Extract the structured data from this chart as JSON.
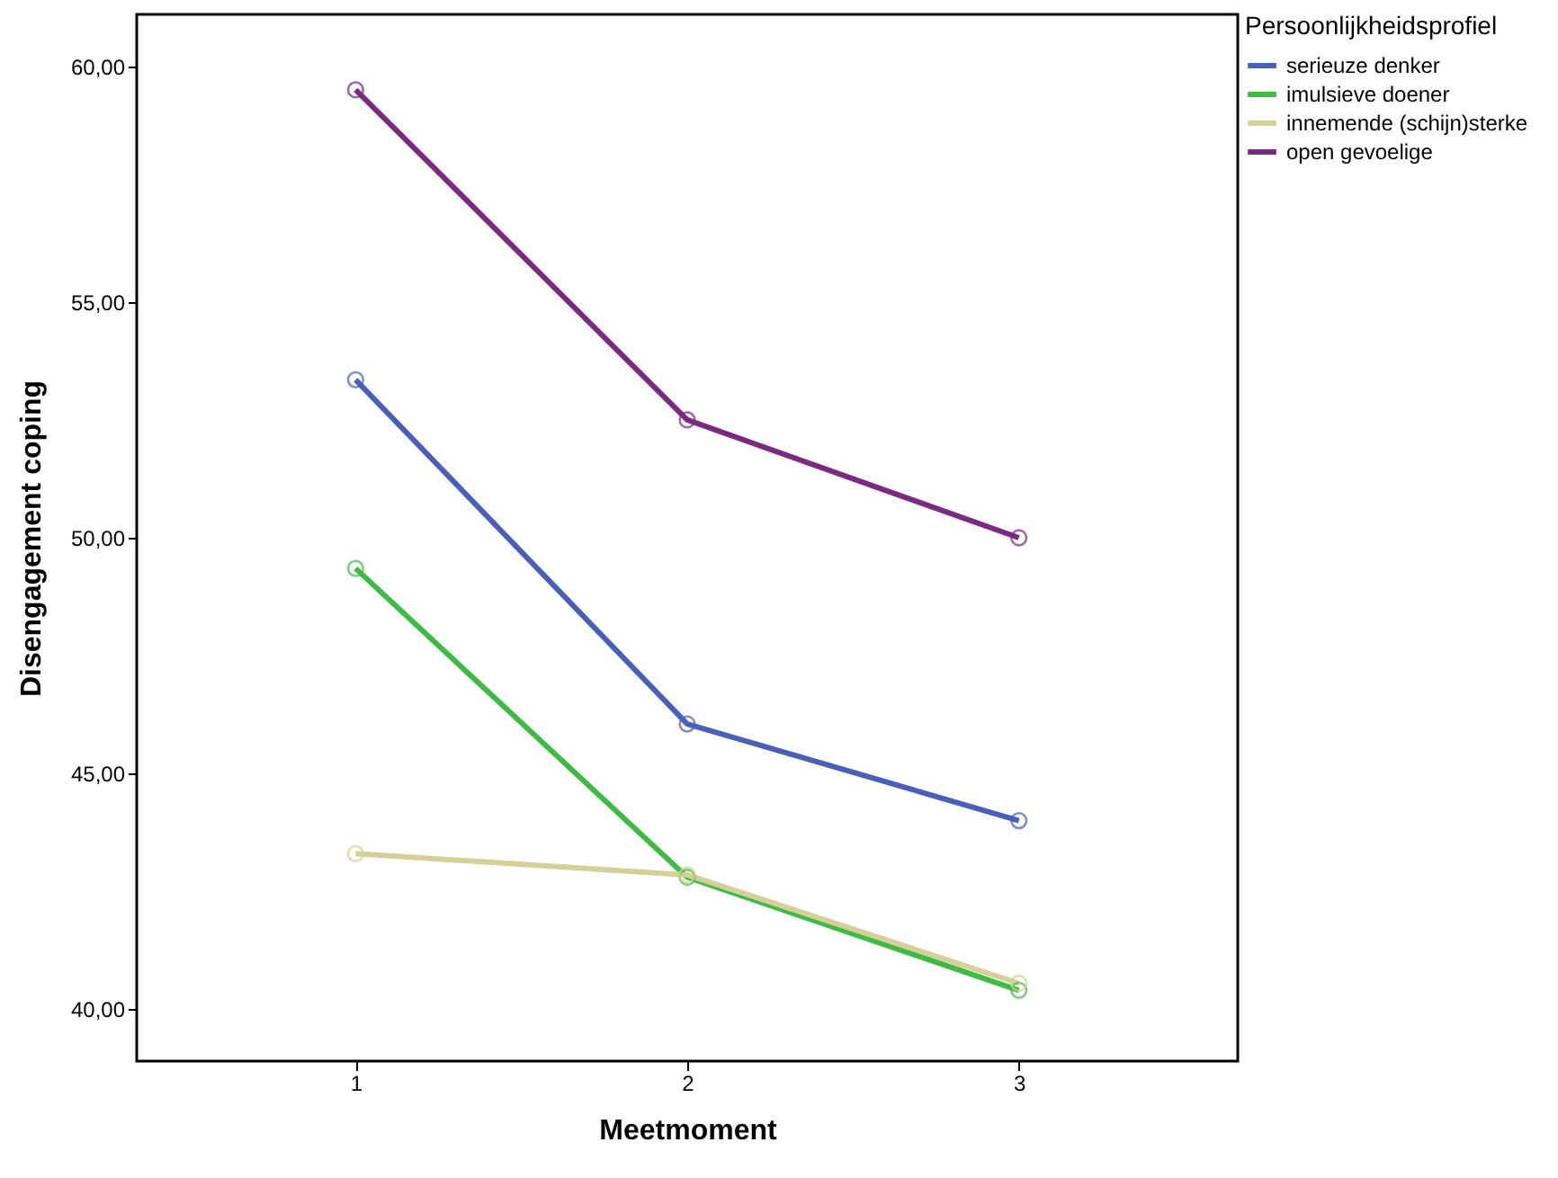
{
  "chart_data": {
    "type": "line",
    "xlabel": "Meetmoment",
    "ylabel": "Disengagement coping",
    "legend_title": "Persoonlijkheidsprofiel",
    "x": [
      1,
      2,
      3
    ],
    "series": [
      {
        "name": "serieuze denker",
        "color": "#4a5fb8",
        "values": [
          53.35,
          46.05,
          44.0
        ]
      },
      {
        "name": "imulsieve doener",
        "color": "#3dbb45",
        "values": [
          49.35,
          42.8,
          40.4
        ]
      },
      {
        "name": "innemende (schijn)sterke",
        "color": "#d5d09a",
        "values": [
          43.3,
          42.85,
          40.55
        ]
      },
      {
        "name": "open gevoelige",
        "color": "#7b2a82",
        "values": [
          59.5,
          52.5,
          50.0
        ]
      }
    ],
    "xlim": [
      0.34,
      3.66
    ],
    "xticks": [
      1,
      2,
      3
    ],
    "ylim": [
      38.9,
      61.1
    ],
    "yticks": [
      {
        "value": 40,
        "label": "40,00"
      },
      {
        "value": 45,
        "label": "45,00"
      },
      {
        "value": 50,
        "label": "50,00"
      },
      {
        "value": 55,
        "label": "55,00"
      },
      {
        "value": 60,
        "label": "60,00"
      }
    ],
    "grid": false,
    "legend": "right",
    "marker": "circle",
    "line_style": "solid"
  }
}
